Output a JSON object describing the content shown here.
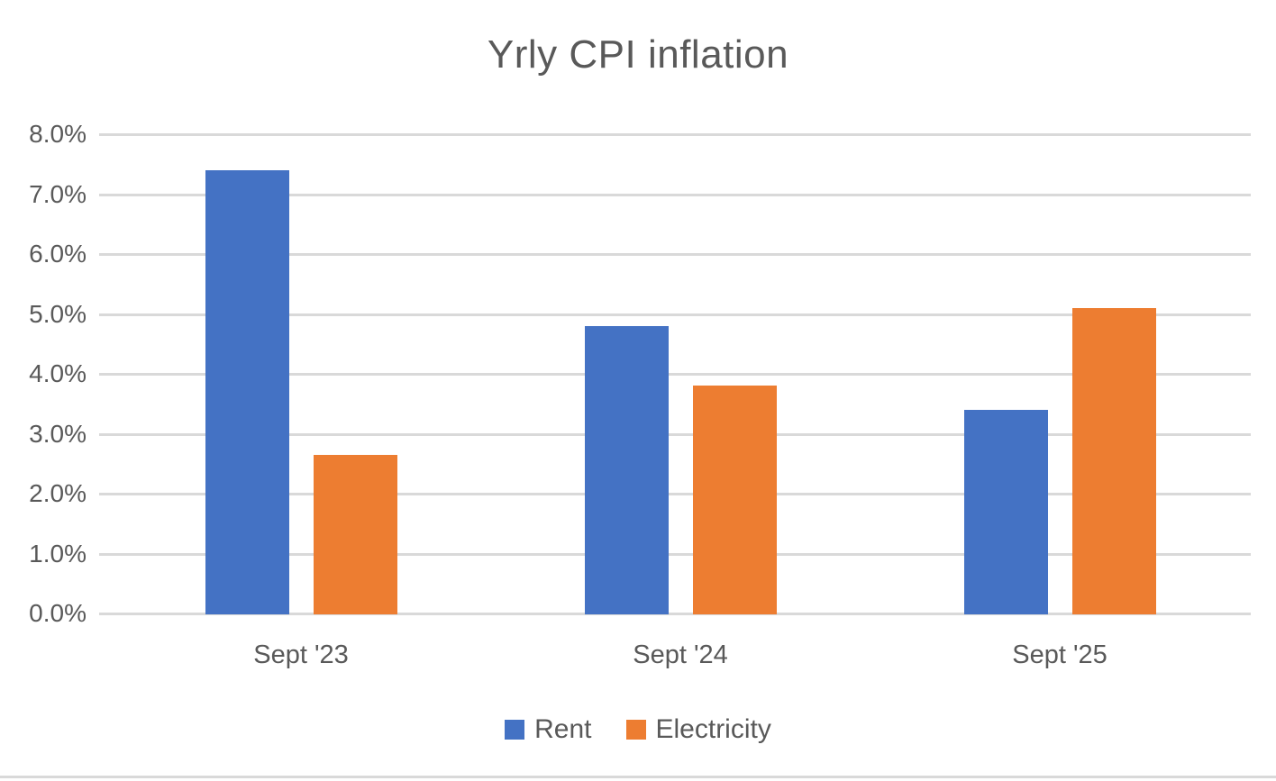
{
  "chart_data": {
    "type": "bar",
    "title": "Yrly CPI inflation",
    "categories": [
      "Sept '23",
      "Sept '24",
      "Sept '25"
    ],
    "series": [
      {
        "name": "Rent",
        "color": "#4472c4",
        "values": [
          7.4,
          4.8,
          3.4
        ]
      },
      {
        "name": "Electricity",
        "color": "#ed7d31",
        "values": [
          2.65,
          3.8,
          5.1
        ]
      }
    ],
    "xlabel": "",
    "ylabel": "",
    "ylim": [
      0,
      8
    ],
    "y_tick_step": 1,
    "y_tick_labels": [
      "0.0%",
      "1.0%",
      "2.0%",
      "3.0%",
      "4.0%",
      "5.0%",
      "6.0%",
      "7.0%",
      "8.0%"
    ],
    "grid": "horizontal",
    "legend_position": "bottom",
    "colors": {
      "text": "#595959",
      "gridline": "#d9d9d9",
      "background": "#ffffff"
    }
  }
}
